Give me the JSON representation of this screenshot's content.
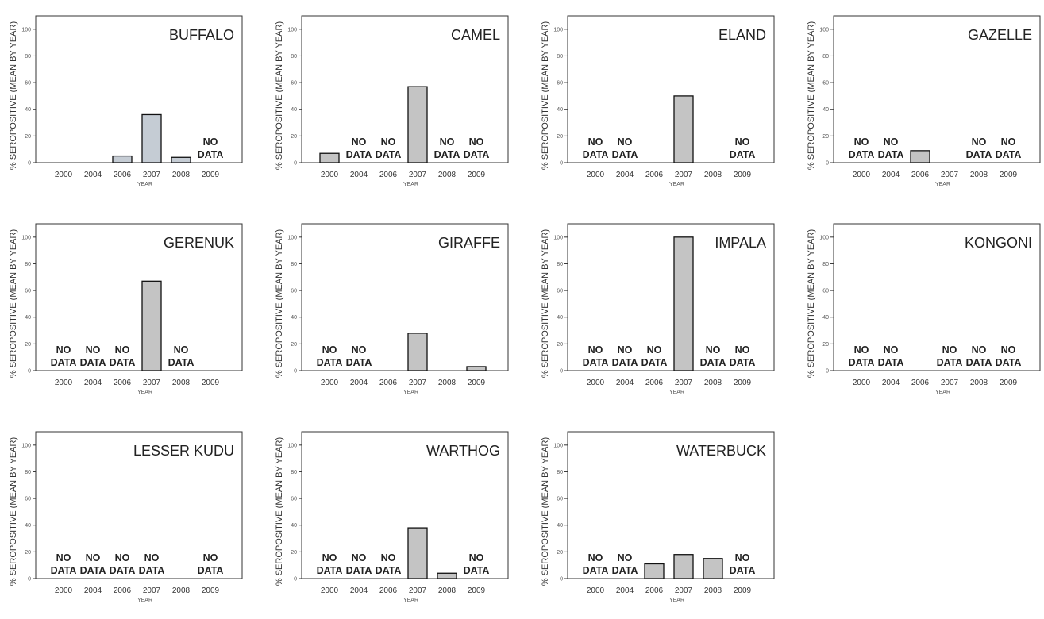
{
  "style": {
    "bar_fill": "#c4c4c4",
    "bar_fill_light": "#c5ccd4",
    "bar_stroke": "#111111",
    "axis_color": "#333333"
  },
  "no_data_lines": [
    "NO",
    "DATA"
  ],
  "chart_data": [
    {
      "type": "bar",
      "title": "BUFFALO",
      "xlabel": "YEAR",
      "ylabel": "% SEROPOSITIVE (MEAN BY YEAR)",
      "categories": [
        "2000",
        "2004",
        "2006",
        "2007",
        "2008",
        "2009"
      ],
      "values": [
        0,
        0,
        5,
        36,
        4,
        null
      ],
      "ylim": [
        0,
        110
      ],
      "yticks": [
        0,
        20,
        40,
        60,
        80,
        100
      ]
    },
    {
      "type": "bar",
      "title": "CAMEL",
      "xlabel": "YEAR",
      "ylabel": "% SEROPOSITIVE (MEAN BY YEAR)",
      "categories": [
        "2000",
        "2004",
        "2006",
        "2007",
        "2008",
        "2009"
      ],
      "values": [
        7,
        null,
        null,
        57,
        null,
        null
      ],
      "ylim": [
        0,
        110
      ],
      "yticks": [
        0,
        20,
        40,
        60,
        80,
        100
      ]
    },
    {
      "type": "bar",
      "title": "ELAND",
      "xlabel": "YEAR",
      "ylabel": "% SEROPOSITIVE (MEAN BY YEAR)",
      "categories": [
        "2000",
        "2004",
        "2006",
        "2007",
        "2008",
        "2009"
      ],
      "values": [
        null,
        null,
        0,
        50,
        0,
        null
      ],
      "ylim": [
        0,
        110
      ],
      "yticks": [
        0,
        20,
        40,
        60,
        80,
        100
      ]
    },
    {
      "type": "bar",
      "title": "GAZELLE",
      "xlabel": "YEAR",
      "ylabel": "% SEROPOSITIVE (MEAN BY YEAR)",
      "categories": [
        "2000",
        "2004",
        "2006",
        "2007",
        "2008",
        "2009"
      ],
      "values": [
        null,
        null,
        9,
        0,
        null,
        null
      ],
      "ylim": [
        0,
        110
      ],
      "yticks": [
        0,
        20,
        40,
        60,
        80,
        100
      ]
    },
    {
      "type": "bar",
      "title": "GERENUK",
      "xlabel": "YEAR",
      "ylabel": "% SEROPOSITIVE (MEAN BY YEAR)",
      "categories": [
        "2000",
        "2004",
        "2006",
        "2007",
        "2008",
        "2009"
      ],
      "values": [
        null,
        null,
        null,
        67,
        null,
        0
      ],
      "ylim": [
        0,
        110
      ],
      "yticks": [
        0,
        20,
        40,
        60,
        80,
        100
      ]
    },
    {
      "type": "bar",
      "title": "GIRAFFE",
      "xlabel": "YEAR",
      "ylabel": "% SEROPOSITIVE (MEAN BY YEAR)",
      "categories": [
        "2000",
        "2004",
        "2006",
        "2007",
        "2008",
        "2009"
      ],
      "values": [
        null,
        null,
        0,
        28,
        0,
        3
      ],
      "ylim": [
        0,
        110
      ],
      "yticks": [
        0,
        20,
        40,
        60,
        80,
        100
      ]
    },
    {
      "type": "bar",
      "title": "IMPALA",
      "xlabel": "YEAR",
      "ylabel": "% SEROPOSITIVE (MEAN BY YEAR)",
      "categories": [
        "2000",
        "2004",
        "2006",
        "2007",
        "2008",
        "2009"
      ],
      "values": [
        null,
        null,
        null,
        100,
        null,
        null
      ],
      "ylim": [
        0,
        110
      ],
      "yticks": [
        0,
        20,
        40,
        60,
        80,
        100
      ]
    },
    {
      "type": "bar",
      "title": "KONGONI",
      "xlabel": "YEAR",
      "ylabel": "% SEROPOSITIVE (MEAN BY YEAR)",
      "categories": [
        "2000",
        "2004",
        "2006",
        "2007",
        "2008",
        "2009"
      ],
      "values": [
        null,
        null,
        0,
        null,
        null,
        null
      ],
      "ylim": [
        0,
        110
      ],
      "yticks": [
        0,
        20,
        40,
        60,
        80,
        100
      ]
    },
    {
      "type": "bar",
      "title": "LESSER KUDU",
      "xlabel": "YEAR",
      "ylabel": "% SEROPOSITIVE (MEAN BY YEAR)",
      "categories": [
        "2000",
        "2004",
        "2006",
        "2007",
        "2008",
        "2009"
      ],
      "values": [
        null,
        null,
        null,
        null,
        0,
        null
      ],
      "ylim": [
        0,
        110
      ],
      "yticks": [
        0,
        20,
        40,
        60,
        80,
        100
      ]
    },
    {
      "type": "bar",
      "title": "WARTHOG",
      "xlabel": "YEAR",
      "ylabel": "% SEROPOSITIVE (MEAN BY YEAR)",
      "categories": [
        "2000",
        "2004",
        "2006",
        "2007",
        "2008",
        "2009"
      ],
      "values": [
        null,
        null,
        null,
        38,
        4,
        null
      ],
      "ylim": [
        0,
        110
      ],
      "yticks": [
        0,
        20,
        40,
        60,
        80,
        100
      ]
    },
    {
      "type": "bar",
      "title": "WATERBUCK",
      "xlabel": "YEAR",
      "ylabel": "% SEROPOSITIVE (MEAN BY YEAR)",
      "categories": [
        "2000",
        "2004",
        "2006",
        "2007",
        "2008",
        "2009"
      ],
      "values": [
        null,
        null,
        11,
        18,
        15,
        null
      ],
      "ylim": [
        0,
        110
      ],
      "yticks": [
        0,
        20,
        40,
        60,
        80,
        100
      ]
    }
  ]
}
